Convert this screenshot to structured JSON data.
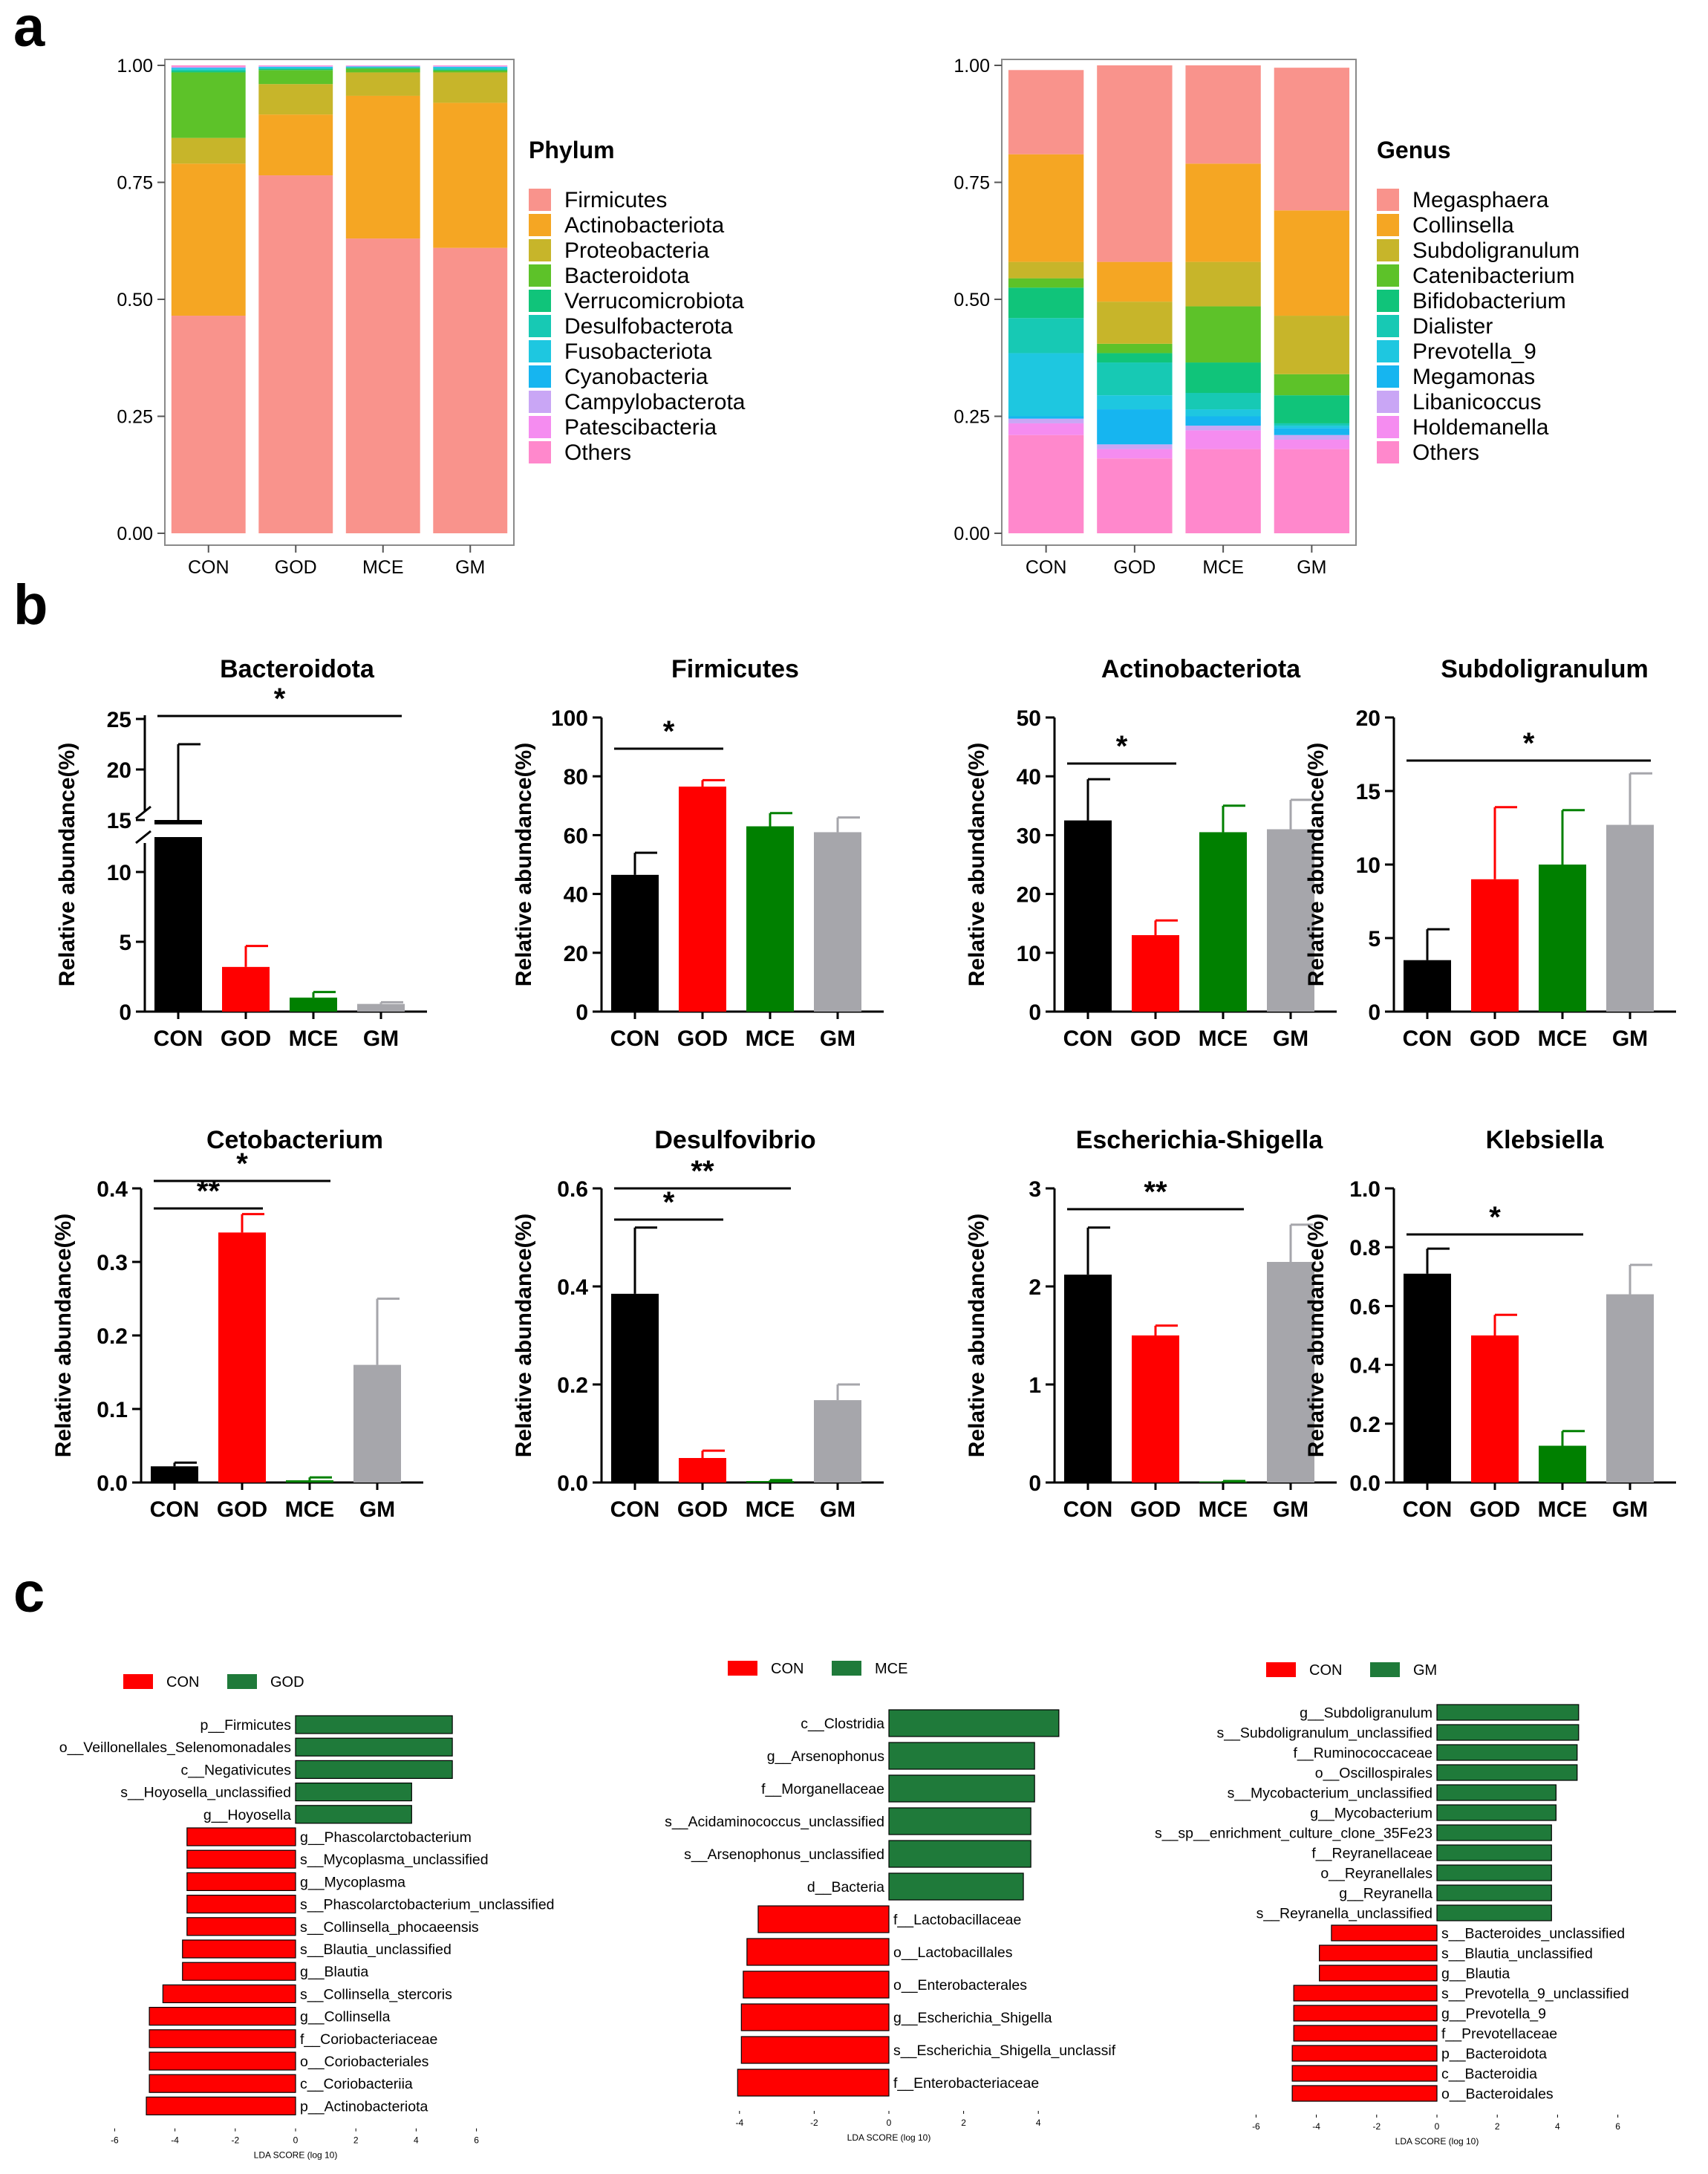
{
  "panel_labels": {
    "a": "a",
    "b": "b",
    "c": "c"
  },
  "groups": [
    "CON",
    "GOD",
    "MCE",
    "GM"
  ],
  "colors": {
    "CON": "#000000",
    "GOD": "#ff0000",
    "MCE": "#008000",
    "GM": "#a6a6ab",
    "lefse_con": "#ff0000",
    "lefse_other": "#1f7a3a"
  },
  "chart_data": [
    {
      "id": "phylum",
      "type": "bar",
      "stacked": true,
      "categories": [
        "CON",
        "GOD",
        "MCE",
        "GM"
      ],
      "ylim": [
        0,
        1
      ],
      "yticks": [
        "0.00",
        "0.25",
        "0.50",
        "0.75",
        "1.00"
      ],
      "legend_title": "Phylum",
      "series": [
        {
          "name": "Firmicutes",
          "color": "#F9938C",
          "values": [
            0.465,
            0.765,
            0.63,
            0.61
          ]
        },
        {
          "name": "Actinobacteriota",
          "color": "#F5A623",
          "values": [
            0.325,
            0.13,
            0.305,
            0.31
          ]
        },
        {
          "name": "Proteobacteria",
          "color": "#C7B52A",
          "values": [
            0.055,
            0.065,
            0.05,
            0.065
          ]
        },
        {
          "name": "Bacteroidota",
          "color": "#5DC229",
          "values": [
            0.14,
            0.03,
            0.008,
            0.004
          ]
        },
        {
          "name": "Verrucomicrobiota",
          "color": "#10C47A",
          "values": [
            0.003,
            0.002,
            0.002,
            0.002
          ]
        },
        {
          "name": "Desulfobacterota",
          "color": "#17C9B4",
          "values": [
            0.003,
            0.002,
            0.001,
            0.003
          ]
        },
        {
          "name": "Fusobacteriota",
          "color": "#1EC7E0",
          "values": [
            0.002,
            0.002,
            0.0005,
            0.002
          ]
        },
        {
          "name": "Cyanobacteria",
          "color": "#16B5F0",
          "values": [
            0.002,
            0.001,
            0.001,
            0.001
          ]
        },
        {
          "name": "Campylobacterota",
          "color": "#C9A6F5",
          "values": [
            0.001,
            0.001,
            0.001,
            0.001
          ]
        },
        {
          "name": "Patescibacteria",
          "color": "#F58CF0",
          "values": [
            0.001,
            0.001,
            0.001,
            0.001
          ]
        },
        {
          "name": "Others",
          "color": "#FF88CC",
          "values": [
            0.003,
            0.001,
            0.0005,
            0.001
          ]
        }
      ]
    },
    {
      "id": "genus",
      "type": "bar",
      "stacked": true,
      "categories": [
        "CON",
        "GOD",
        "MCE",
        "GM"
      ],
      "ylim": [
        0,
        1
      ],
      "yticks": [
        "0.00",
        "0.25",
        "0.50",
        "0.75",
        "1.00"
      ],
      "legend_title": "Genus",
      "series": [
        {
          "name": "Others",
          "color": "#FF88CC",
          "values": [
            0.21,
            0.16,
            0.18,
            0.18
          ]
        },
        {
          "name": "Holdemanella",
          "color": "#F58CF0",
          "values": [
            0.025,
            0.02,
            0.04,
            0.02
          ]
        },
        {
          "name": "Libanicoccus",
          "color": "#C9A6F5",
          "values": [
            0.01,
            0.01,
            0.01,
            0.01
          ]
        },
        {
          "name": "Megamonas",
          "color": "#16B5F0",
          "values": [
            0.005,
            0.075,
            0.02,
            0.015
          ]
        },
        {
          "name": "Prevotella_9",
          "color": "#1EC7E0",
          "values": [
            0.135,
            0.03,
            0.015,
            0.005
          ]
        },
        {
          "name": "Dialister",
          "color": "#17C9B4",
          "values": [
            0.075,
            0.07,
            0.035,
            0.005
          ]
        },
        {
          "name": "Bifidobacterium",
          "color": "#10C47A",
          "values": [
            0.065,
            0.02,
            0.065,
            0.06
          ]
        },
        {
          "name": "Catenibacterium",
          "color": "#5DC229",
          "values": [
            0.02,
            0.02,
            0.12,
            0.045
          ]
        },
        {
          "name": "Subdoligranulum",
          "color": "#C7B52A",
          "values": [
            0.035,
            0.09,
            0.095,
            0.125
          ]
        },
        {
          "name": "Collinsella",
          "color": "#F5A623",
          "values": [
            0.23,
            0.085,
            0.21,
            0.225
          ]
        },
        {
          "name": "Megasphaera",
          "color": "#F9938C",
          "values": [
            0.18,
            0.42,
            0.21,
            0.305
          ]
        }
      ]
    },
    {
      "id": "bacteroidota",
      "type": "bar",
      "title": "Bacteroidota",
      "ylabel": "Relative abundance(%)",
      "categories": [
        "CON",
        "GOD",
        "MCE",
        "GM"
      ],
      "values": [
        15,
        3.2,
        1.0,
        0.55
      ],
      "errors": [
        7.5,
        1.5,
        0.4,
        0.12
      ],
      "yticks_lower": [
        "0",
        "5",
        "10"
      ],
      "yticks_upper": [
        "15",
        "20",
        "25"
      ],
      "axis_break": [
        12.5,
        15
      ],
      "significance": [
        {
          "from": "CON",
          "to": "GM",
          "label": "*"
        }
      ]
    },
    {
      "id": "firmicutes",
      "type": "bar",
      "title": "Firmicutes",
      "ylabel": "Relative abundance(%)",
      "categories": [
        "CON",
        "GOD",
        "MCE",
        "GM"
      ],
      "values": [
        46.5,
        76.5,
        63,
        61
      ],
      "errors": [
        7.5,
        2.2,
        4.5,
        5
      ],
      "ylim": [
        0,
        100
      ],
      "yticks": [
        "0",
        "20",
        "40",
        "60",
        "80",
        "100"
      ],
      "significance": [
        {
          "from": "CON",
          "to": "GOD",
          "label": "*"
        }
      ]
    },
    {
      "id": "actinobacteriota",
      "type": "bar",
      "title": "Actinobacteriota",
      "ylabel": "Relative abundance(%)",
      "categories": [
        "CON",
        "GOD",
        "MCE",
        "GM"
      ],
      "values": [
        32.5,
        13,
        30.5,
        31
      ],
      "errors": [
        7,
        2.5,
        4.5,
        5
      ],
      "ylim": [
        0,
        50
      ],
      "yticks": [
        "0",
        "10",
        "20",
        "30",
        "40",
        "50"
      ],
      "significance": [
        {
          "from": "CON",
          "to": "GOD",
          "label": "*"
        }
      ]
    },
    {
      "id": "subdoligranulum",
      "type": "bar",
      "title": "Subdoligranulum",
      "ylabel": "Relative abundance(%)",
      "categories": [
        "CON",
        "GOD",
        "MCE",
        "GM"
      ],
      "values": [
        3.5,
        9,
        10,
        12.7
      ],
      "errors": [
        2.1,
        4.9,
        3.7,
        3.5
      ],
      "ylim": [
        0,
        20
      ],
      "yticks": [
        "0",
        "5",
        "10",
        "15",
        "20"
      ],
      "significance": [
        {
          "from": "CON",
          "to": "GM",
          "label": "*"
        }
      ]
    },
    {
      "id": "cetobacterium",
      "type": "bar",
      "title": "Cetobacterium",
      "ylabel": "Relative abundance(%)",
      "categories": [
        "CON",
        "GOD",
        "MCE",
        "GM"
      ],
      "values": [
        0.022,
        0.34,
        0.003,
        0.16
      ],
      "errors": [
        0.005,
        0.025,
        0.004,
        0.09
      ],
      "ylim": [
        0,
        0.4
      ],
      "yticks": [
        "0.0",
        "0.1",
        "0.2",
        "0.3",
        "0.4"
      ],
      "significance": [
        {
          "from": "CON",
          "to": "GOD",
          "label": "**"
        },
        {
          "from": "CON",
          "to": "MCE",
          "label": "*"
        }
      ]
    },
    {
      "id": "desulfovibrio",
      "type": "bar",
      "title": "Desulfovibrio",
      "ylabel": "Relative abundance(%)",
      "categories": [
        "CON",
        "GOD",
        "MCE",
        "GM"
      ],
      "values": [
        0.385,
        0.05,
        0.003,
        0.168
      ],
      "errors": [
        0.135,
        0.015,
        0.002,
        0.032
      ],
      "ylim": [
        0,
        0.6
      ],
      "yticks": [
        "0.0",
        "0.2",
        "0.4",
        "0.6"
      ],
      "significance": [
        {
          "from": "CON",
          "to": "GOD",
          "label": "*"
        },
        {
          "from": "CON",
          "to": "MCE",
          "label": "**"
        }
      ]
    },
    {
      "id": "escherichia",
      "type": "bar",
      "title": "Escherichia-Shigella",
      "ylabel": "Relative abundance(%)",
      "categories": [
        "CON",
        "GOD",
        "MCE",
        "GM"
      ],
      "values": [
        2.12,
        1.5,
        0.01,
        2.25
      ],
      "errors": [
        0.48,
        0.1,
        0.005,
        0.38
      ],
      "ylim": [
        0,
        3
      ],
      "yticks": [
        "0",
        "1",
        "2",
        "3"
      ],
      "significance": [
        {
          "from": "CON",
          "to": "MCE",
          "label": "**"
        }
      ]
    },
    {
      "id": "klebsiella",
      "type": "bar",
      "title": "Klebsiella",
      "ylabel": "Relative abundance(%)",
      "categories": [
        "CON",
        "GOD",
        "MCE",
        "GM"
      ],
      "values": [
        0.71,
        0.5,
        0.125,
        0.64
      ],
      "errors": [
        0.085,
        0.07,
        0.05,
        0.1
      ],
      "ylim": [
        0,
        1
      ],
      "yticks": [
        "0.0",
        "0.2",
        "0.4",
        "0.6",
        "0.8",
        "1.0"
      ],
      "significance": [
        {
          "from": "CON",
          "to": "MCE",
          "label": "*"
        }
      ]
    },
    {
      "id": "lefse_god",
      "type": "bar",
      "orientation": "horizontal",
      "xlabel": "LDA SCORE (log 10)",
      "legend": [
        "CON",
        "GOD"
      ],
      "xlim": [
        -6,
        6
      ],
      "xticks": [
        "-6",
        "-4",
        "-2",
        "0",
        "2",
        "4",
        "6"
      ],
      "taxa": [
        "p__Firmicutes",
        "o__Veillonellales_Selenomonadales",
        "c__Negativicutes",
        "s__Hoyosella_unclassified",
        "g__Hoyosella",
        "g__Phascolarctobacterium",
        "s__Mycoplasma_unclassified",
        "g__Mycoplasma",
        "s__Phascolarctobacterium_unclassified",
        "s__Collinsella_phocaeensis",
        "s__Blautia_unclassified",
        "g__Blautia",
        "s__Collinsella_stercoris",
        "g__Collinsella",
        "f__Coriobacteriaceae",
        "o__Coriobacteriales",
        "c__Coriobacteriia",
        "p__Actinobacteriota"
      ],
      "values": [
        5.2,
        5.2,
        5.2,
        3.85,
        3.85,
        -3.6,
        -3.6,
        -3.6,
        -3.6,
        -3.6,
        -3.75,
        -3.75,
        -4.4,
        -4.85,
        -4.85,
        -4.85,
        -4.85,
        -4.95
      ]
    },
    {
      "id": "lefse_mce",
      "type": "bar",
      "orientation": "horizontal",
      "xlabel": "LDA SCORE (log 10)",
      "legend": [
        "CON",
        "MCE"
      ],
      "xlim": [
        -4.5,
        5
      ],
      "xticks": [
        "-4",
        "-2",
        "0",
        "2",
        "4"
      ],
      "taxa": [
        "c__Clostridia",
        "g__Arsenophonus",
        "f__Morganellaceae",
        "s__Acidaminococcus_unclassified",
        "s__Arsenophonus_unclassified",
        "d__Bacteria",
        "f__Lactobacillaceae",
        "o__Lactobacillales",
        "o__Enterobacterales",
        "g__Escherichia_Shigella",
        "s__Escherichia_Shigella_unclassif",
        "f__Enterobacteriaceae"
      ],
      "values": [
        4.55,
        3.9,
        3.9,
        3.8,
        3.8,
        3.6,
        -3.5,
        -3.8,
        -3.9,
        -3.95,
        -3.95,
        -4.05
      ]
    },
    {
      "id": "lefse_gm",
      "type": "bar",
      "orientation": "horizontal",
      "xlabel": "LDA SCORE (log 10)",
      "legend": [
        "CON",
        "GM"
      ],
      "xlim": [
        -6,
        6
      ],
      "xticks": [
        "-6",
        "-4",
        "-2",
        "0",
        "2",
        "4",
        "6"
      ],
      "taxa": [
        "g__Subdoligranulum",
        "s__Subdoligranulum_unclassified",
        "f__Ruminococcaceae",
        "o__Oscillospirales",
        "s__Mycobacterium_unclassified",
        "g__Mycobacterium",
        "s__sp__enrichment_culture_clone_35Fe23",
        "f__Reyranellaceae",
        "o__Reyranellales",
        "g__Reyranella",
        "s__Reyranella_unclassified",
        "s__Bacteroides_unclassified",
        "s__Blautia_unclassified",
        "g__Blautia",
        "s__Prevotella_9_unclassified",
        "g__Prevotella_9",
        "f__Prevotellaceae",
        "p__Bacteroidota",
        "c__Bacteroidia",
        "o__Bacteroidales"
      ],
      "values": [
        4.7,
        4.7,
        4.65,
        4.65,
        3.95,
        3.95,
        3.8,
        3.8,
        3.8,
        3.8,
        3.8,
        -3.5,
        -3.9,
        -3.9,
        -4.75,
        -4.75,
        -4.75,
        -4.8,
        -4.8,
        -4.8
      ]
    }
  ]
}
